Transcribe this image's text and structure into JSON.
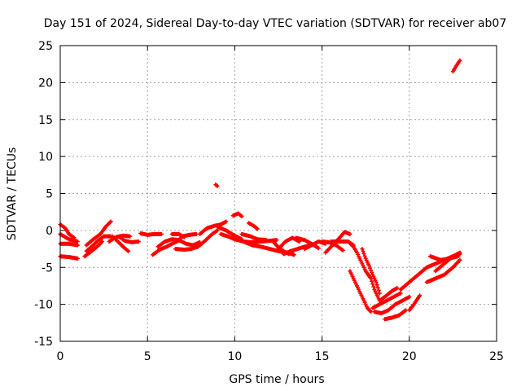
{
  "colors": {
    "series": "#ff0000",
    "axis": "#000000",
    "grid": "#a0a0a0",
    "background": "#ffffff"
  },
  "chart_data": {
    "type": "scatter",
    "title": "Day 151 of 2024, Sidereal Day-to-day VTEC variation (SDTVAR) for receiver ab07",
    "xlabel": "GPS time / hours",
    "ylabel": "SDTVAR / TECUs",
    "xlim": [
      0,
      25
    ],
    "ylim": [
      -15,
      25
    ],
    "xticks": [
      0,
      5,
      10,
      15,
      20,
      25
    ],
    "yticks": [
      -15,
      -10,
      -5,
      0,
      5,
      10,
      15,
      20,
      25
    ],
    "grid": true,
    "marker": "plus",
    "series": [
      {
        "name": "SDTVAR",
        "color": "#ff0000",
        "tracks": [
          [
            [
              0.0,
              0.8
            ],
            [
              0.3,
              0.3
            ],
            [
              0.5,
              -0.5
            ],
            [
              0.8,
              -1.0
            ]
          ],
          [
            [
              0.0,
              -0.5
            ],
            [
              0.5,
              -1.2
            ],
            [
              1.0,
              -1.5
            ]
          ],
          [
            [
              0.0,
              -1.8
            ],
            [
              0.5,
              -1.8
            ],
            [
              1.0,
              -2.0
            ]
          ],
          [
            [
              0.0,
              -3.5
            ],
            [
              0.5,
              -3.6
            ],
            [
              1.0,
              -3.8
            ]
          ],
          [
            [
              1.4,
              -3.5
            ],
            [
              1.8,
              -2.8
            ],
            [
              2.2,
              -2.0
            ],
            [
              2.4,
              -1.5
            ]
          ],
          [
            [
              1.5,
              -2.0
            ],
            [
              1.9,
              -1.2
            ],
            [
              2.3,
              -0.5
            ],
            [
              2.6,
              0.5
            ],
            [
              2.9,
              1.2
            ]
          ],
          [
            [
              1.5,
              -2.8
            ],
            [
              1.8,
              -2.2
            ],
            [
              2.1,
              -1.5
            ],
            [
              2.5,
              -0.8
            ],
            [
              2.9,
              -0.8
            ]
          ],
          [
            [
              2.8,
              -1.5
            ],
            [
              3.2,
              -0.9
            ],
            [
              3.6,
              -0.7
            ],
            [
              4.0,
              -0.8
            ]
          ],
          [
            [
              3.0,
              -0.8
            ],
            [
              3.3,
              -1.5
            ],
            [
              3.6,
              -2.2
            ],
            [
              3.9,
              -2.8
            ]
          ],
          [
            [
              3.4,
              -0.9
            ],
            [
              3.7,
              -1.4
            ],
            [
              4.1,
              -1.6
            ],
            [
              4.5,
              -1.5
            ]
          ],
          [
            [
              4.6,
              -0.4
            ],
            [
              5.0,
              -0.6
            ],
            [
              5.4,
              -0.5
            ],
            [
              5.8,
              -0.5
            ]
          ],
          [
            [
              5.3,
              -3.3
            ],
            [
              5.7,
              -2.6
            ],
            [
              6.1,
              -2.2
            ],
            [
              6.4,
              -1.8
            ],
            [
              6.7,
              -1.5
            ],
            [
              7.0,
              -0.8
            ],
            [
              7.4,
              -0.6
            ],
            [
              7.8,
              -0.5
            ]
          ],
          [
            [
              5.6,
              -2.2
            ],
            [
              6.0,
              -1.5
            ],
            [
              6.4,
              -1.2
            ],
            [
              6.8,
              -1.3
            ],
            [
              7.2,
              -1.8
            ],
            [
              7.6,
              -2.0
            ],
            [
              8.0,
              -1.6
            ]
          ],
          [
            [
              6.4,
              -0.5
            ],
            [
              6.8,
              -0.5
            ],
            [
              7.1,
              -0.9
            ]
          ],
          [
            [
              6.6,
              -2.5
            ],
            [
              7.1,
              -2.6
            ],
            [
              7.5,
              -2.5
            ],
            [
              7.9,
              -2.2
            ],
            [
              8.3,
              -1.4
            ],
            [
              8.7,
              -0.5
            ],
            [
              9.0,
              0.0
            ]
          ],
          [
            [
              8.0,
              -0.5
            ],
            [
              8.4,
              0.3
            ],
            [
              8.8,
              0.6
            ],
            [
              9.2,
              0.8
            ],
            [
              9.5,
              1.2
            ]
          ],
          [
            [
              8.9,
              6.2
            ],
            [
              9.0,
              6.0
            ]
          ],
          [
            [
              9.0,
              0.5
            ],
            [
              9.5,
              0.0
            ],
            [
              10.0,
              -0.7
            ],
            [
              10.4,
              -1.2
            ]
          ],
          [
            [
              9.2,
              -0.5
            ],
            [
              9.6,
              -0.8
            ],
            [
              10.0,
              -1.2
            ],
            [
              10.5,
              -1.5
            ],
            [
              11.0,
              -1.6
            ],
            [
              11.5,
              -1.5
            ],
            [
              12.0,
              -1.4
            ],
            [
              12.4,
              -1.3
            ]
          ],
          [
            [
              9.9,
              2.0
            ],
            [
              10.2,
              2.3
            ],
            [
              10.4,
              1.9
            ]
          ],
          [
            [
              10.4,
              -0.5
            ],
            [
              10.9,
              -0.8
            ],
            [
              11.3,
              -1.2
            ],
            [
              11.8,
              -1.3
            ]
          ],
          [
            [
              10.8,
              1.0
            ],
            [
              11.1,
              0.6
            ],
            [
              11.3,
              0.2
            ]
          ],
          [
            [
              10.5,
              -1.5
            ],
            [
              11.0,
              -2.0
            ],
            [
              11.5,
              -2.2
            ],
            [
              12.0,
              -2.5
            ],
            [
              12.5,
              -2.8
            ],
            [
              13.0,
              -3.0
            ],
            [
              13.4,
              -3.3
            ]
          ],
          [
            [
              12.2,
              -1.5
            ],
            [
              12.5,
              -2.3
            ],
            [
              12.8,
              -2.8
            ],
            [
              13.1,
              -3.2
            ]
          ],
          [
            [
              12.5,
              -2.5
            ],
            [
              12.9,
              -1.5
            ],
            [
              13.3,
              -1.0
            ],
            [
              13.7,
              -1.5
            ]
          ],
          [
            [
              12.8,
              -3.2
            ],
            [
              13.2,
              -2.8
            ],
            [
              13.6,
              -2.5
            ],
            [
              14.0,
              -2.2
            ],
            [
              14.4,
              -2.0
            ]
          ],
          [
            [
              13.5,
              -1.0
            ],
            [
              14.0,
              -1.3
            ],
            [
              14.4,
              -1.8
            ],
            [
              14.8,
              -2.4
            ]
          ],
          [
            [
              14.0,
              -2.5
            ],
            [
              14.4,
              -2.0
            ],
            [
              14.8,
              -1.5
            ],
            [
              15.2,
              -1.8
            ]
          ],
          [
            [
              15.0,
              -1.5
            ],
            [
              15.4,
              -1.6
            ],
            [
              15.8,
              -2.0
            ],
            [
              16.2,
              -2.7
            ]
          ],
          [
            [
              15.2,
              -3.0
            ],
            [
              15.6,
              -2.0
            ],
            [
              16.0,
              -1.0
            ],
            [
              16.3,
              -0.2
            ],
            [
              16.6,
              -0.5
            ]
          ],
          [
            [
              15.5,
              -1.5
            ],
            [
              16.0,
              -1.5
            ],
            [
              16.5,
              -1.5
            ],
            [
              16.8,
              -2.0
            ]
          ],
          [
            [
              16.5,
              -1.5
            ],
            [
              16.8,
              -2.2
            ],
            [
              17.0,
              -3.0
            ],
            [
              17.3,
              -4.5
            ],
            [
              17.5,
              -5.5
            ],
            [
              17.8,
              -6.5
            ],
            [
              18.0,
              -8.0
            ],
            [
              18.3,
              -9.5
            ]
          ],
          [
            [
              16.6,
              -5.5
            ],
            [
              16.8,
              -6.5
            ],
            [
              17.0,
              -7.5
            ],
            [
              17.2,
              -8.5
            ],
            [
              17.4,
              -9.5
            ],
            [
              17.6,
              -10.5
            ],
            [
              17.8,
              -11.0
            ]
          ],
          [
            [
              17.3,
              -2.5
            ],
            [
              17.5,
              -3.8
            ],
            [
              17.7,
              -4.8
            ],
            [
              17.9,
              -6.0
            ],
            [
              18.1,
              -7.0
            ],
            [
              18.3,
              -8.5
            ]
          ],
          [
            [
              17.9,
              -10.5
            ],
            [
              18.3,
              -10.0
            ],
            [
              18.7,
              -9.5
            ],
            [
              19.1,
              -9.0
            ],
            [
              19.5,
              -8.5
            ]
          ],
          [
            [
              18.0,
              -11.0
            ],
            [
              18.4,
              -11.2
            ],
            [
              18.8,
              -10.8
            ],
            [
              19.2,
              -10.0
            ],
            [
              19.6,
              -9.5
            ],
            [
              20.0,
              -9.0
            ]
          ],
          [
            [
              18.3,
              -9.5
            ],
            [
              18.7,
              -8.8
            ],
            [
              19.0,
              -8.2
            ],
            [
              19.3,
              -7.8
            ]
          ],
          [
            [
              18.6,
              -12.0
            ],
            [
              19.0,
              -11.8
            ],
            [
              19.4,
              -11.5
            ],
            [
              19.8,
              -10.8
            ]
          ],
          [
            [
              19.5,
              -8.0
            ],
            [
              20.0,
              -7.0
            ],
            [
              20.5,
              -6.0
            ],
            [
              21.0,
              -5.0
            ],
            [
              21.5,
              -4.5
            ],
            [
              22.0,
              -4.0
            ],
            [
              22.5,
              -3.5
            ],
            [
              22.9,
              -3.2
            ]
          ],
          [
            [
              20.0,
              -10.8
            ],
            [
              20.2,
              -10.2
            ],
            [
              20.4,
              -9.5
            ],
            [
              20.6,
              -8.8
            ]
          ],
          [
            [
              21.0,
              -7.0
            ],
            [
              21.5,
              -6.5
            ],
            [
              22.0,
              -6.0
            ],
            [
              22.5,
              -5.0
            ],
            [
              22.9,
              -4.0
            ]
          ],
          [
            [
              21.2,
              -3.5
            ],
            [
              21.8,
              -4.0
            ],
            [
              22.3,
              -3.8
            ],
            [
              22.8,
              -3.5
            ]
          ],
          [
            [
              21.5,
              -5.5
            ],
            [
              22.0,
              -4.5
            ],
            [
              22.5,
              -3.5
            ],
            [
              22.9,
              -3.0
            ]
          ],
          [
            [
              22.5,
              21.5
            ],
            [
              22.7,
              22.3
            ],
            [
              22.9,
              23.0
            ]
          ]
        ]
      }
    ]
  }
}
